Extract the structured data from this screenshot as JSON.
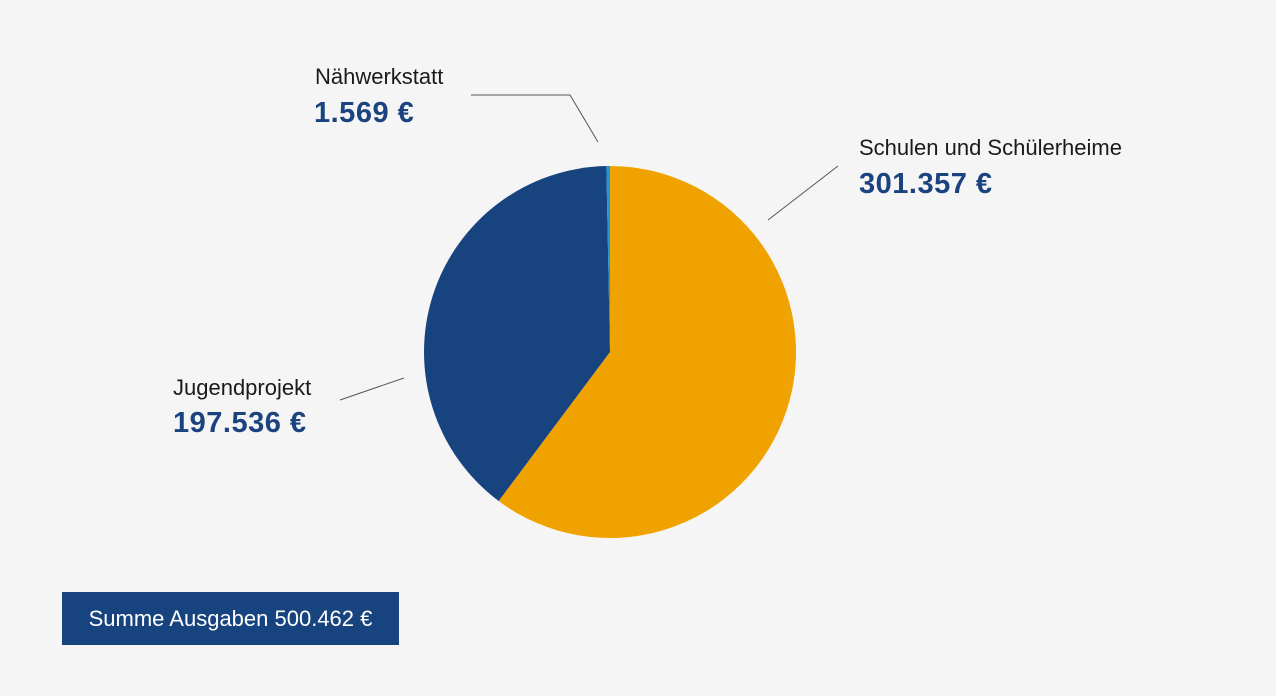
{
  "chart_data": {
    "type": "pie",
    "slices": [
      {
        "label": "Schulen und Schülerheime",
        "value": 301357,
        "value_text": "301.357 €",
        "color": "#f0a300"
      },
      {
        "label": "Jugendprojekt",
        "value": 197536,
        "value_text": "197.536 €",
        "color": "#17437f"
      },
      {
        "label": "Nähwerkstatt",
        "value": 1569,
        "value_text": "1.569 €",
        "color": "#1a9ad6"
      }
    ],
    "start": "12 o'clock",
    "direction": "clockwise"
  },
  "total": {
    "text": "Summe Ausgaben 500.462 €"
  },
  "colors": {
    "background": "#f5f5f5",
    "value_text": "#1b4380",
    "leader_line": "#555555"
  }
}
